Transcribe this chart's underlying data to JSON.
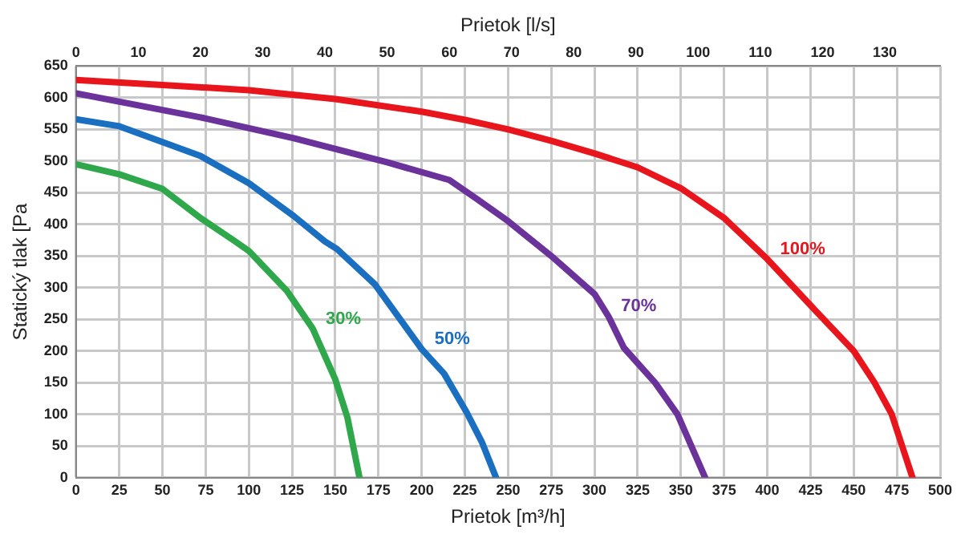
{
  "chart_data": {
    "type": "line",
    "xlabel": "Prietok [m³/h]",
    "x2label": "Prietok [l/s]",
    "ylabel": "Statický tlak [Pa",
    "xlim": [
      0,
      500
    ],
    "xticks": [
      0,
      25,
      50,
      75,
      100,
      125,
      150,
      175,
      200,
      225,
      250,
      275,
      300,
      325,
      350,
      375,
      400,
      425,
      450,
      475,
      500
    ],
    "x2lim": [
      0,
      138.9
    ],
    "x2ticks": [
      0,
      10,
      20,
      30,
      40,
      50,
      60,
      70,
      80,
      90,
      100,
      110,
      120,
      130
    ],
    "ylim": [
      0,
      650
    ],
    "yticks": [
      0,
      50,
      100,
      150,
      200,
      250,
      300,
      350,
      400,
      450,
      500,
      550,
      600,
      650
    ],
    "grid": true,
    "legend": false,
    "marker": "none",
    "line_style": "solid",
    "series": [
      {
        "name": "100%",
        "color": "#e8161c",
        "x": [
          0,
          50,
          100,
          150,
          200,
          225,
          250,
          275,
          300,
          325,
          350,
          375,
          400,
          425,
          450,
          462,
          472,
          478,
          484
        ],
        "values": [
          628,
          620,
          612,
          598,
          578,
          565,
          550,
          532,
          512,
          490,
          457,
          410,
          345,
          272,
          200,
          150,
          100,
          50,
          0
        ]
      },
      {
        "name": "70%",
        "color": "#6a329a",
        "x": [
          0,
          36,
          72,
          126,
          180,
          216,
          232,
          250,
          275,
          300,
          308,
          317,
          335,
          348,
          356,
          364
        ],
        "values": [
          607,
          588,
          569,
          536,
          498,
          470,
          440,
          405,
          350,
          290,
          255,
          205,
          150,
          100,
          50,
          0
        ]
      },
      {
        "name": "50%",
        "color": "#1a6fc0",
        "x": [
          0,
          25,
          72,
          100,
          126,
          144,
          151,
          173,
          200,
          213,
          226,
          235,
          243
        ],
        "values": [
          566,
          555,
          508,
          465,
          413,
          373,
          361,
          305,
          203,
          164,
          103,
          55,
          0
        ]
      },
      {
        "name": "30%",
        "color": "#2ea84a",
        "x": [
          0,
          25,
          50,
          72,
          91,
          100,
          122,
          137,
          150,
          157,
          164
        ],
        "values": [
          495,
          479,
          456,
          410,
          375,
          358,
          295,
          235,
          155,
          95,
          0
        ]
      }
    ]
  }
}
